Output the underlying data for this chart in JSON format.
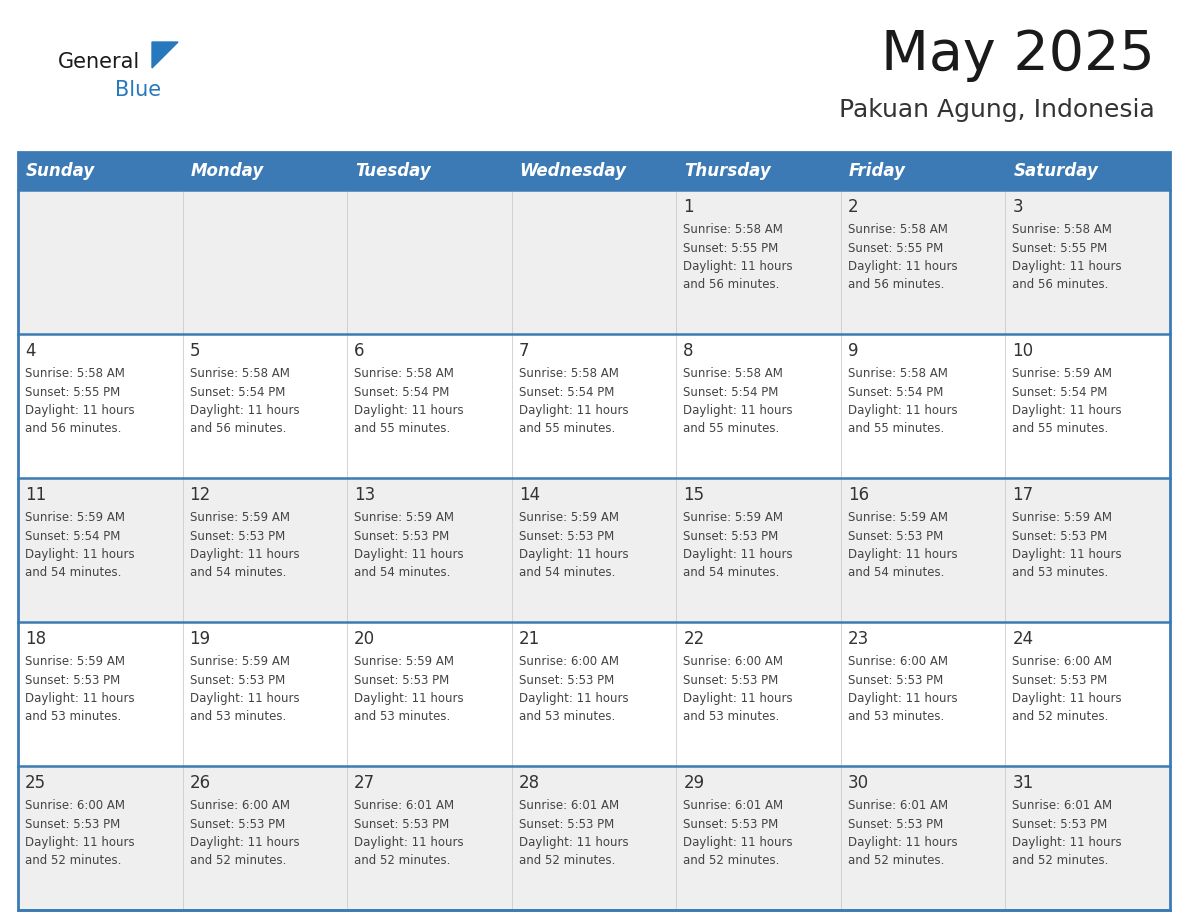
{
  "title": "May 2025",
  "subtitle": "Pakuan Agung, Indonesia",
  "days_of_week": [
    "Sunday",
    "Monday",
    "Tuesday",
    "Wednesday",
    "Thursday",
    "Friday",
    "Saturday"
  ],
  "header_bg": "#3c7ab5",
  "header_text": "#ffffff",
  "row_bg_odd": "#efefef",
  "row_bg_even": "#ffffff",
  "week_border": "#3c7ab5",
  "title_color": "#1a1a1a",
  "subtitle_color": "#333333",
  "day_num_color": "#333333",
  "info_color": "#444444",
  "logo_general_color": "#1a1a1a",
  "logo_blue_color": "#2878be",
  "calendar_data": [
    [
      {
        "day": "",
        "sunrise": "",
        "sunset": "",
        "daylight_hours": "",
        "daylight_mins": ""
      },
      {
        "day": "",
        "sunrise": "",
        "sunset": "",
        "daylight_hours": "",
        "daylight_mins": ""
      },
      {
        "day": "",
        "sunrise": "",
        "sunset": "",
        "daylight_hours": "",
        "daylight_mins": ""
      },
      {
        "day": "",
        "sunrise": "",
        "sunset": "",
        "daylight_hours": "",
        "daylight_mins": ""
      },
      {
        "day": "1",
        "sunrise": "5:58 AM",
        "sunset": "5:55 PM",
        "daylight_hours": "11 hours",
        "daylight_mins": "and 56 minutes."
      },
      {
        "day": "2",
        "sunrise": "5:58 AM",
        "sunset": "5:55 PM",
        "daylight_hours": "11 hours",
        "daylight_mins": "and 56 minutes."
      },
      {
        "day": "3",
        "sunrise": "5:58 AM",
        "sunset": "5:55 PM",
        "daylight_hours": "11 hours",
        "daylight_mins": "and 56 minutes."
      }
    ],
    [
      {
        "day": "4",
        "sunrise": "5:58 AM",
        "sunset": "5:55 PM",
        "daylight_hours": "11 hours",
        "daylight_mins": "and 56 minutes."
      },
      {
        "day": "5",
        "sunrise": "5:58 AM",
        "sunset": "5:54 PM",
        "daylight_hours": "11 hours",
        "daylight_mins": "and 56 minutes."
      },
      {
        "day": "6",
        "sunrise": "5:58 AM",
        "sunset": "5:54 PM",
        "daylight_hours": "11 hours",
        "daylight_mins": "and 55 minutes."
      },
      {
        "day": "7",
        "sunrise": "5:58 AM",
        "sunset": "5:54 PM",
        "daylight_hours": "11 hours",
        "daylight_mins": "and 55 minutes."
      },
      {
        "day": "8",
        "sunrise": "5:58 AM",
        "sunset": "5:54 PM",
        "daylight_hours": "11 hours",
        "daylight_mins": "and 55 minutes."
      },
      {
        "day": "9",
        "sunrise": "5:58 AM",
        "sunset": "5:54 PM",
        "daylight_hours": "11 hours",
        "daylight_mins": "and 55 minutes."
      },
      {
        "day": "10",
        "sunrise": "5:59 AM",
        "sunset": "5:54 PM",
        "daylight_hours": "11 hours",
        "daylight_mins": "and 55 minutes."
      }
    ],
    [
      {
        "day": "11",
        "sunrise": "5:59 AM",
        "sunset": "5:54 PM",
        "daylight_hours": "11 hours",
        "daylight_mins": "and 54 minutes."
      },
      {
        "day": "12",
        "sunrise": "5:59 AM",
        "sunset": "5:53 PM",
        "daylight_hours": "11 hours",
        "daylight_mins": "and 54 minutes."
      },
      {
        "day": "13",
        "sunrise": "5:59 AM",
        "sunset": "5:53 PM",
        "daylight_hours": "11 hours",
        "daylight_mins": "and 54 minutes."
      },
      {
        "day": "14",
        "sunrise": "5:59 AM",
        "sunset": "5:53 PM",
        "daylight_hours": "11 hours",
        "daylight_mins": "and 54 minutes."
      },
      {
        "day": "15",
        "sunrise": "5:59 AM",
        "sunset": "5:53 PM",
        "daylight_hours": "11 hours",
        "daylight_mins": "and 54 minutes."
      },
      {
        "day": "16",
        "sunrise": "5:59 AM",
        "sunset": "5:53 PM",
        "daylight_hours": "11 hours",
        "daylight_mins": "and 54 minutes."
      },
      {
        "day": "17",
        "sunrise": "5:59 AM",
        "sunset": "5:53 PM",
        "daylight_hours": "11 hours",
        "daylight_mins": "and 53 minutes."
      }
    ],
    [
      {
        "day": "18",
        "sunrise": "5:59 AM",
        "sunset": "5:53 PM",
        "daylight_hours": "11 hours",
        "daylight_mins": "and 53 minutes."
      },
      {
        "day": "19",
        "sunrise": "5:59 AM",
        "sunset": "5:53 PM",
        "daylight_hours": "11 hours",
        "daylight_mins": "and 53 minutes."
      },
      {
        "day": "20",
        "sunrise": "5:59 AM",
        "sunset": "5:53 PM",
        "daylight_hours": "11 hours",
        "daylight_mins": "and 53 minutes."
      },
      {
        "day": "21",
        "sunrise": "6:00 AM",
        "sunset": "5:53 PM",
        "daylight_hours": "11 hours",
        "daylight_mins": "and 53 minutes."
      },
      {
        "day": "22",
        "sunrise": "6:00 AM",
        "sunset": "5:53 PM",
        "daylight_hours": "11 hours",
        "daylight_mins": "and 53 minutes."
      },
      {
        "day": "23",
        "sunrise": "6:00 AM",
        "sunset": "5:53 PM",
        "daylight_hours": "11 hours",
        "daylight_mins": "and 53 minutes."
      },
      {
        "day": "24",
        "sunrise": "6:00 AM",
        "sunset": "5:53 PM",
        "daylight_hours": "11 hours",
        "daylight_mins": "and 52 minutes."
      }
    ],
    [
      {
        "day": "25",
        "sunrise": "6:00 AM",
        "sunset": "5:53 PM",
        "daylight_hours": "11 hours",
        "daylight_mins": "and 52 minutes."
      },
      {
        "day": "26",
        "sunrise": "6:00 AM",
        "sunset": "5:53 PM",
        "daylight_hours": "11 hours",
        "daylight_mins": "and 52 minutes."
      },
      {
        "day": "27",
        "sunrise": "6:01 AM",
        "sunset": "5:53 PM",
        "daylight_hours": "11 hours",
        "daylight_mins": "and 52 minutes."
      },
      {
        "day": "28",
        "sunrise": "6:01 AM",
        "sunset": "5:53 PM",
        "daylight_hours": "11 hours",
        "daylight_mins": "and 52 minutes."
      },
      {
        "day": "29",
        "sunrise": "6:01 AM",
        "sunset": "5:53 PM",
        "daylight_hours": "11 hours",
        "daylight_mins": "and 52 minutes."
      },
      {
        "day": "30",
        "sunrise": "6:01 AM",
        "sunset": "5:53 PM",
        "daylight_hours": "11 hours",
        "daylight_mins": "and 52 minutes."
      },
      {
        "day": "31",
        "sunrise": "6:01 AM",
        "sunset": "5:53 PM",
        "daylight_hours": "11 hours",
        "daylight_mins": "and 52 minutes."
      }
    ]
  ]
}
